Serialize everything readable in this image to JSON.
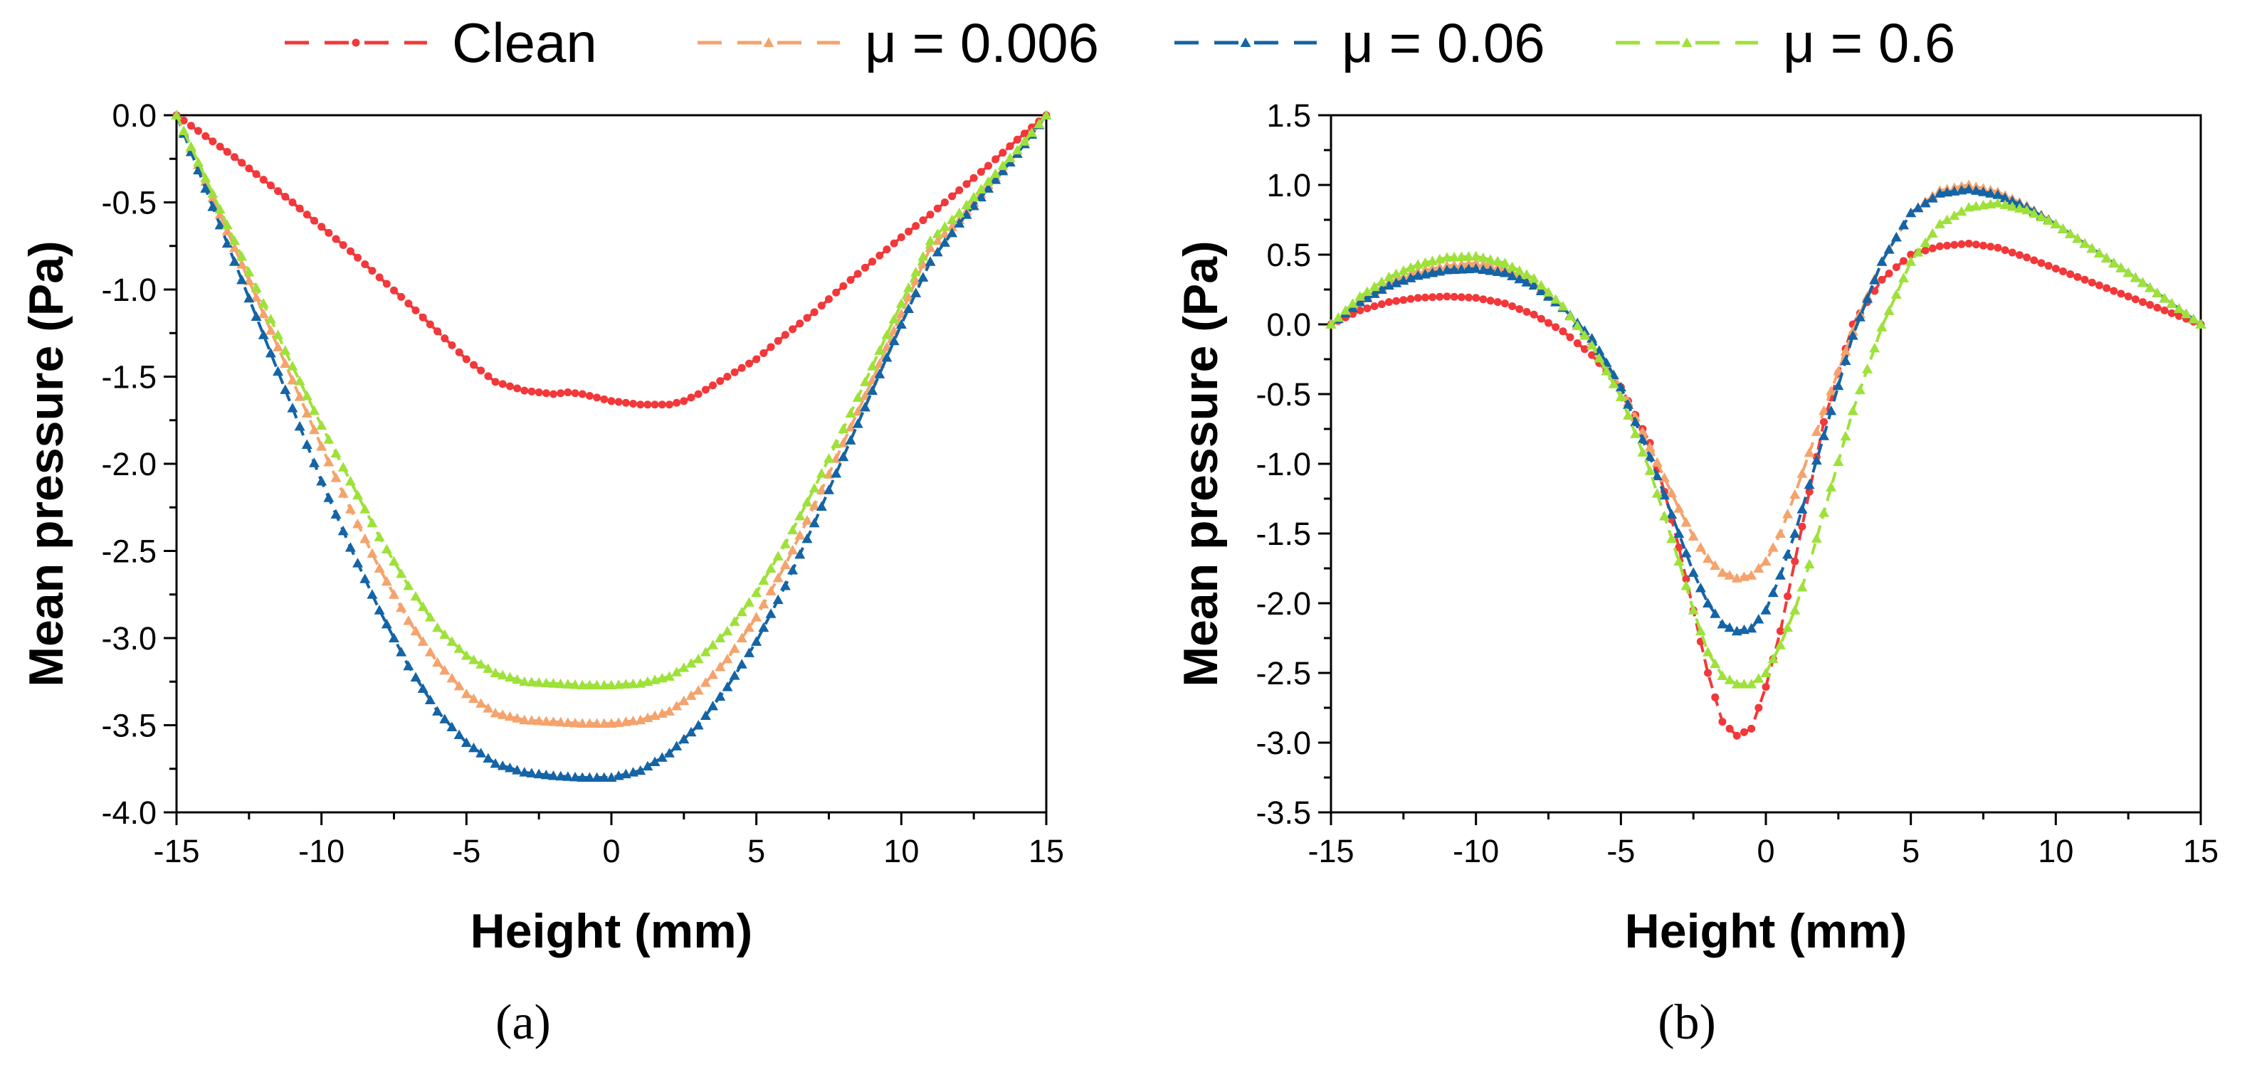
{
  "legend": {
    "entries": [
      {
        "series": "clean",
        "label": "Clean",
        "color": "#f2383a",
        "marker": "circle"
      },
      {
        "series": "mu0006",
        "label": "μ = 0.006",
        "color": "#f4a36c",
        "marker": "triangle"
      },
      {
        "series": "mu006",
        "label": "μ = 0.06",
        "color": "#1464a6",
        "marker": "triangle"
      },
      {
        "series": "mu06",
        "label": "μ = 0.6",
        "color": "#9ee13a",
        "marker": "triangle"
      }
    ]
  },
  "chart_data": [
    {
      "type": "line",
      "panel": "a",
      "caption": "(a)",
      "xlabel": "Height (mm)",
      "ylabel": "Mean pressure (Pa)",
      "xlim": [
        -15,
        15
      ],
      "ylim": [
        -4.0,
        0.0
      ],
      "xticks": [
        -15,
        -10,
        -5,
        0,
        5,
        10,
        15
      ],
      "xtick_labels": [
        "-15",
        "-10",
        "-5",
        "0",
        "5",
        "10",
        "15"
      ],
      "yticks": [
        0.0,
        -0.5,
        -1.0,
        -1.5,
        -2.0,
        -2.5,
        -3.0,
        -3.5,
        -4.0
      ],
      "ytick_labels": [
        "0.0",
        "-0.5",
        "-1.0",
        "-1.5",
        "-2.0",
        "-2.5",
        "-3.0",
        "-3.5",
        "-4.0"
      ],
      "grid": false,
      "series": [
        {
          "name": "Clean",
          "key": "clean",
          "x": [
            -15,
            -14,
            -13,
            -12,
            -11,
            -10,
            -9,
            -8,
            -7,
            -6,
            -5,
            -4,
            -3,
            -2,
            -1.5,
            -1,
            0,
            1,
            2,
            2.5,
            3,
            4,
            5,
            6,
            7,
            8,
            9,
            10,
            11,
            12,
            13,
            14,
            15
          ],
          "y": [
            0,
            -0.12,
            -0.24,
            -0.37,
            -0.5,
            -0.64,
            -0.78,
            -0.93,
            -1.08,
            -1.24,
            -1.4,
            -1.53,
            -1.58,
            -1.6,
            -1.59,
            -1.6,
            -1.64,
            -1.66,
            -1.66,
            -1.64,
            -1.6,
            -1.5,
            -1.4,
            -1.26,
            -1.13,
            -0.98,
            -0.84,
            -0.7,
            -0.57,
            -0.43,
            -0.29,
            -0.14,
            0
          ]
        },
        {
          "name": "μ = 0.006",
          "key": "mu0006",
          "x": [
            -15,
            -14,
            -13,
            -12,
            -11,
            -10,
            -9,
            -8,
            -7,
            -6,
            -5,
            -4,
            -3,
            -2,
            -1,
            0,
            1,
            2,
            3,
            4,
            5,
            6,
            7,
            8,
            9,
            10,
            11,
            12,
            13,
            14,
            15
          ],
          "y": [
            0,
            -0.38,
            -0.76,
            -1.14,
            -1.52,
            -1.9,
            -2.26,
            -2.6,
            -2.9,
            -3.14,
            -3.32,
            -3.43,
            -3.47,
            -3.48,
            -3.49,
            -3.49,
            -3.47,
            -3.42,
            -3.3,
            -3.12,
            -2.88,
            -2.58,
            -2.24,
            -1.88,
            -1.52,
            -1.14,
            -0.76,
            -0.6,
            -0.4,
            -0.22,
            0
          ]
        },
        {
          "name": "μ = 0.06",
          "key": "mu006",
          "x": [
            -15,
            -14,
            -13,
            -12,
            -11,
            -10,
            -9,
            -8,
            -7,
            -6,
            -5,
            -4,
            -3,
            -2,
            -1,
            0,
            1,
            2,
            3,
            4,
            5,
            6,
            7,
            8,
            9,
            10,
            11,
            12,
            13,
            14,
            15
          ],
          "y": [
            0,
            -0.42,
            -0.84,
            -1.26,
            -1.68,
            -2.1,
            -2.48,
            -2.84,
            -3.16,
            -3.42,
            -3.6,
            -3.72,
            -3.77,
            -3.79,
            -3.8,
            -3.8,
            -3.76,
            -3.66,
            -3.5,
            -3.28,
            -3.02,
            -2.7,
            -2.34,
            -1.96,
            -1.58,
            -1.2,
            -0.84,
            -0.62,
            -0.42,
            -0.22,
            0
          ]
        },
        {
          "name": "μ = 0.6",
          "key": "mu06",
          "x": [
            -15,
            -14,
            -13,
            -12,
            -11,
            -10,
            -9,
            -8,
            -7,
            -6,
            -5,
            -4,
            -3,
            -2,
            -1,
            0,
            1,
            2,
            3,
            4,
            5,
            6,
            7,
            8,
            9,
            10,
            11,
            12,
            13,
            14,
            15
          ],
          "y": [
            0,
            -0.36,
            -0.72,
            -1.08,
            -1.44,
            -1.78,
            -2.1,
            -2.42,
            -2.7,
            -2.94,
            -3.1,
            -3.2,
            -3.25,
            -3.26,
            -3.27,
            -3.27,
            -3.26,
            -3.22,
            -3.12,
            -2.96,
            -2.74,
            -2.46,
            -2.14,
            -1.8,
            -1.44,
            -1.08,
            -0.72,
            -0.56,
            -0.38,
            -0.2,
            0
          ]
        }
      ]
    },
    {
      "type": "line",
      "panel": "b",
      "caption": "(b)",
      "xlabel": "Height (mm)",
      "ylabel": "Mean pressure (Pa)",
      "xlim": [
        -15,
        15
      ],
      "ylim": [
        -3.5,
        1.5
      ],
      "xticks": [
        -15,
        -10,
        -5,
        0,
        5,
        10,
        15
      ],
      "xtick_labels": [
        "-15",
        "-10",
        "-5",
        "0",
        "5",
        "10",
        "15"
      ],
      "yticks": [
        1.5,
        1.0,
        0.5,
        0.0,
        -0.5,
        -1.0,
        -1.5,
        -2.0,
        -2.5,
        -3.0,
        -3.5
      ],
      "ytick_labels": [
        "1.5",
        "1.0",
        "0.5",
        "0.0",
        "-0.5",
        "-1.0",
        "-1.5",
        "-2.0",
        "-2.5",
        "-3.0",
        "-3.5"
      ],
      "grid": false,
      "series": [
        {
          "name": "Clean",
          "key": "clean",
          "x": [
            -15,
            -14,
            -13,
            -12,
            -11,
            -10,
            -9,
            -8,
            -7,
            -6,
            -5,
            -4,
            -3.5,
            -3,
            -2.5,
            -2,
            -1.5,
            -1,
            -0.5,
            0,
            0.5,
            1,
            1.5,
            2,
            3,
            4,
            5,
            6,
            7,
            8,
            9,
            10,
            11,
            12,
            13,
            14,
            15
          ],
          "y": [
            0,
            0.1,
            0.16,
            0.19,
            0.2,
            0.19,
            0.15,
            0.07,
            -0.05,
            -0.22,
            -0.45,
            -0.85,
            -1.2,
            -1.6,
            -2.05,
            -2.5,
            -2.85,
            -2.95,
            -2.9,
            -2.6,
            -2.2,
            -1.7,
            -1.2,
            -0.7,
            0.0,
            0.32,
            0.5,
            0.56,
            0.58,
            0.55,
            0.48,
            0.4,
            0.32,
            0.24,
            0.16,
            0.08,
            0
          ]
        },
        {
          "name": "μ = 0.006",
          "key": "mu0006",
          "x": [
            -15,
            -14,
            -13,
            -12,
            -11,
            -10,
            -9,
            -8,
            -7,
            -6,
            -5,
            -4,
            -3,
            -2.5,
            -2,
            -1.5,
            -1,
            -0.5,
            0,
            0.5,
            1,
            2,
            3,
            4,
            5,
            6,
            7,
            8,
            9,
            10,
            11,
            12,
            13,
            14,
            15
          ],
          "y": [
            0,
            0.18,
            0.3,
            0.38,
            0.42,
            0.44,
            0.4,
            0.3,
            0.12,
            -0.12,
            -0.45,
            -0.88,
            -1.32,
            -1.52,
            -1.68,
            -1.78,
            -1.82,
            -1.8,
            -1.7,
            -1.5,
            -1.22,
            -0.62,
            -0.05,
            0.45,
            0.8,
            0.96,
            1.0,
            0.95,
            0.85,
            0.72,
            0.58,
            0.44,
            0.3,
            0.15,
            0
          ]
        },
        {
          "name": "μ = 0.06",
          "key": "mu006",
          "x": [
            -15,
            -14,
            -13,
            -12,
            -11,
            -10,
            -9,
            -8,
            -7,
            -6,
            -5,
            -4,
            -3,
            -2.5,
            -2,
            -1.5,
            -1,
            -0.5,
            0,
            0.5,
            1,
            2,
            3,
            4,
            5,
            6,
            7,
            8,
            9,
            10,
            11,
            12,
            13,
            14,
            15
          ],
          "y": [
            0,
            0.16,
            0.28,
            0.35,
            0.39,
            0.4,
            0.37,
            0.28,
            0.12,
            -0.1,
            -0.45,
            -0.95,
            -1.5,
            -1.78,
            -2.0,
            -2.15,
            -2.2,
            -2.18,
            -2.05,
            -1.8,
            -1.5,
            -0.8,
            -0.08,
            0.45,
            0.8,
            0.94,
            0.97,
            0.93,
            0.84,
            0.72,
            0.58,
            0.44,
            0.3,
            0.15,
            0
          ]
        },
        {
          "name": "μ = 0.6",
          "key": "mu06",
          "x": [
            -15,
            -14,
            -13,
            -12,
            -11,
            -10,
            -9,
            -8,
            -7,
            -6,
            -5,
            -4,
            -3,
            -2.5,
            -2,
            -1.5,
            -1,
            -0.5,
            0,
            0.5,
            1,
            1.5,
            2,
            3,
            4,
            5,
            6,
            7,
            8,
            9,
            10,
            11,
            12,
            13,
            14,
            15
          ],
          "y": [
            0,
            0.2,
            0.34,
            0.43,
            0.48,
            0.49,
            0.44,
            0.33,
            0.13,
            -0.15,
            -0.52,
            -1.05,
            -1.7,
            -2.05,
            -2.35,
            -2.52,
            -2.58,
            -2.58,
            -2.5,
            -2.3,
            -2.05,
            -1.72,
            -1.35,
            -0.62,
            -0.02,
            0.45,
            0.72,
            0.84,
            0.87,
            0.82,
            0.72,
            0.58,
            0.44,
            0.3,
            0.15,
            0
          ]
        }
      ]
    }
  ]
}
